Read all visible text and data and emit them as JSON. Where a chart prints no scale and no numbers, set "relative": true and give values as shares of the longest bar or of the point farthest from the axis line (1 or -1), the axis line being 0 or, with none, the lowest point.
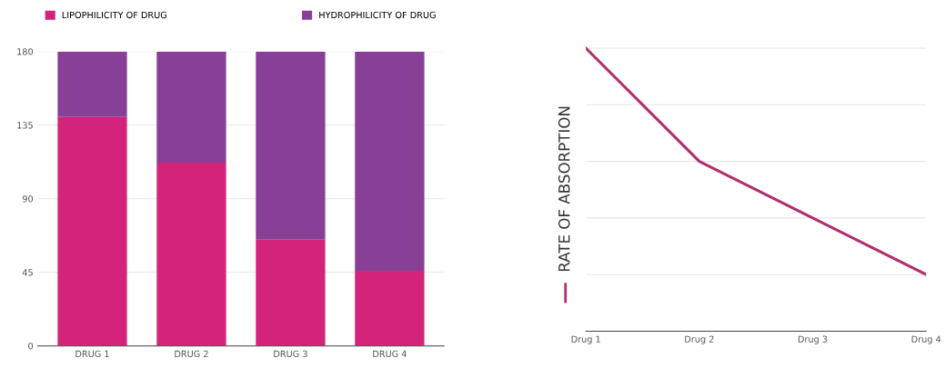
{
  "chart_data": [
    {
      "type": "bar",
      "stacked": true,
      "categories": [
        "DRUG 1",
        "DRUG 2",
        "DRUG 3",
        "DRUG 4"
      ],
      "ylim": [
        0,
        180
      ],
      "yticks": [
        0,
        45,
        90,
        135,
        180
      ],
      "grid": "y",
      "legend": "top",
      "series": [
        {
          "name": "LIPOPHILICITY OF DRUG",
          "color": "#d4237a",
          "values": [
            140,
            112,
            65,
            46
          ]
        },
        {
          "name": "HYDROPHILICITY OF DRUG",
          "color": "#883f96",
          "values": [
            40,
            68,
            115,
            134
          ]
        }
      ]
    },
    {
      "type": "line",
      "relative": true,
      "categories": [
        "Drug 1",
        "Drug 2",
        "Drug 3",
        "Drug 4"
      ],
      "grid": "y",
      "legend": "left",
      "series": [
        {
          "name": "RATE OF ABSORPTION",
          "color": "#b0306e",
          "values": [
            1,
            0.6,
            0.4,
            0.2
          ]
        }
      ]
    }
  ]
}
